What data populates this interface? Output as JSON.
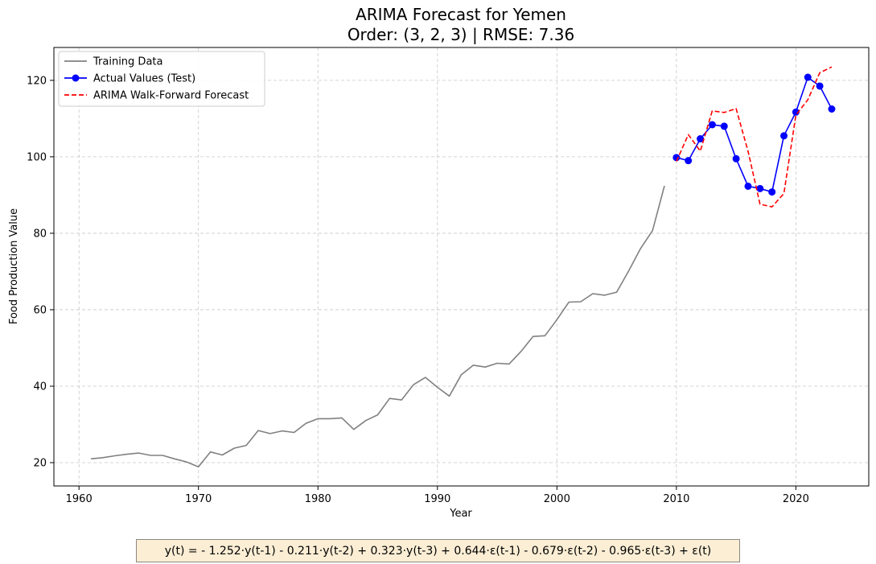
{
  "chart_data": {
    "type": "line",
    "title_line1": "ARIMA Forecast for Yemen",
    "title_line2": "Order: (3, 2, 3) | RMSE: 7.36",
    "xlabel": "Year",
    "ylabel": "Food Production Value",
    "xlim": [
      1957.9,
      2026.1
    ],
    "ylim": [
      13.9,
      128.6
    ],
    "xticks": [
      1960,
      1970,
      1980,
      1990,
      2000,
      2010,
      2020
    ],
    "yticks": [
      20,
      40,
      60,
      80,
      100,
      120
    ],
    "grid": true,
    "legend_position": "top-left",
    "series": [
      {
        "name": "Training Data",
        "color": "#808080",
        "style": "solid",
        "marker": "none",
        "x": [
          1961,
          1962,
          1963,
          1964,
          1965,
          1966,
          1967,
          1968,
          1969,
          1970,
          1971,
          1972,
          1973,
          1974,
          1975,
          1976,
          1977,
          1978,
          1979,
          1980,
          1981,
          1982,
          1983,
          1984,
          1985,
          1986,
          1987,
          1988,
          1989,
          1990,
          1991,
          1992,
          1993,
          1994,
          1995,
          1996,
          1997,
          1998,
          1999,
          2000,
          2001,
          2002,
          2003,
          2004,
          2005,
          2006,
          2007,
          2008,
          2009
        ],
        "y": [
          21.0,
          21.3,
          21.8,
          22.2,
          22.5,
          21.9,
          21.9,
          21.0,
          20.2,
          18.9,
          22.8,
          22.0,
          23.8,
          24.5,
          28.4,
          27.6,
          28.3,
          27.9,
          30.3,
          31.5,
          31.5,
          31.7,
          28.7,
          31.0,
          32.5,
          36.8,
          36.4,
          40.4,
          42.3,
          39.7,
          37.4,
          43.0,
          45.5,
          45.0,
          46.0,
          45.8,
          49.1,
          53.0,
          53.2,
          57.4,
          62.0,
          62.1,
          64.2,
          63.8,
          64.6,
          70.1,
          76.0,
          80.7,
          92.4
        ]
      },
      {
        "name": "Actual Values (Test)",
        "color": "#0000ff",
        "style": "solid",
        "marker": "circle",
        "x": [
          2010,
          2011,
          2012,
          2013,
          2014,
          2015,
          2016,
          2017,
          2018,
          2019,
          2020,
          2021,
          2022,
          2023
        ],
        "y": [
          99.8,
          99.0,
          104.7,
          108.4,
          108.0,
          99.5,
          92.3,
          91.7,
          90.8,
          105.5,
          111.7,
          120.8,
          118.5,
          112.5
        ]
      },
      {
        "name": "ARIMA Walk-Forward Forecast",
        "color": "#ff0000",
        "style": "dashed",
        "marker": "none",
        "x": [
          2010,
          2011,
          2012,
          2013,
          2014,
          2015,
          2016,
          2017,
          2018,
          2019,
          2020,
          2021,
          2022,
          2023
        ],
        "y": [
          98.8,
          105.8,
          101.5,
          112.0,
          111.6,
          112.6,
          101.4,
          87.6,
          86.9,
          90.4,
          110.9,
          114.9,
          122.0,
          123.5
        ]
      }
    ]
  },
  "formula": "y(t) = - 1.252·y(t-1) - 0.211·y(t-2) + 0.323·y(t-3) + 0.644·ε(t-1) - 0.679·ε(t-2) - 0.965·ε(t-3) + ε(t)"
}
